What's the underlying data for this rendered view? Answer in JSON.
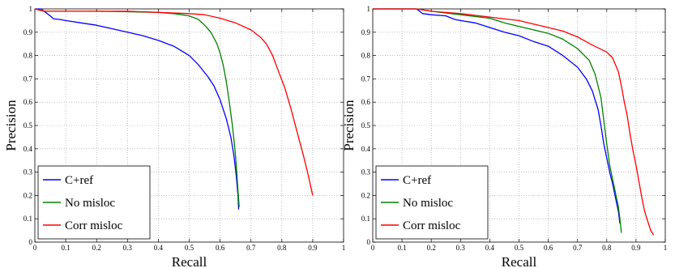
{
  "figure": {
    "background": "#ffffff"
  },
  "chart_data": [
    {
      "type": "line",
      "xlabel": "Recall",
      "ylabel": "Precision",
      "xlim": [
        0,
        1
      ],
      "ylim": [
        0,
        1
      ],
      "xticks": [
        "0",
        "0.1",
        "0.2",
        "0.3",
        "0.4",
        "0.5",
        "0.6",
        "0.7",
        "0.8",
        "0.9",
        "1"
      ],
      "yticks": [
        "0",
        "0.1",
        "0.2",
        "0.3",
        "0.4",
        "0.5",
        "0.6",
        "0.7",
        "0.8",
        "0.9",
        "1"
      ],
      "grid": true,
      "legend_position": "bottom-left",
      "series": [
        {
          "name": "C+ref",
          "color": "#0000ff",
          "points": [
            [
              0,
              1
            ],
            [
              0.02,
              1
            ],
            [
              0.035,
              0.985
            ],
            [
              0.05,
              0.97
            ],
            [
              0.06,
              0.958
            ],
            [
              0.08,
              0.955
            ],
            [
              0.1,
              0.95
            ],
            [
              0.15,
              0.94
            ],
            [
              0.2,
              0.93
            ],
            [
              0.25,
              0.915
            ],
            [
              0.3,
              0.9
            ],
            [
              0.35,
              0.885
            ],
            [
              0.4,
              0.865
            ],
            [
              0.45,
              0.84
            ],
            [
              0.5,
              0.8
            ],
            [
              0.53,
              0.76
            ],
            [
              0.56,
              0.71
            ],
            [
              0.58,
              0.67
            ],
            [
              0.6,
              0.61
            ],
            [
              0.62,
              0.53
            ],
            [
              0.635,
              0.45
            ],
            [
              0.645,
              0.37
            ],
            [
              0.652,
              0.29
            ],
            [
              0.658,
              0.2
            ],
            [
              0.66,
              0.14
            ]
          ]
        },
        {
          "name": "No misloc",
          "color": "#008000",
          "points": [
            [
              0,
              1
            ],
            [
              0.03,
              0.99
            ],
            [
              0.1,
              0.99
            ],
            [
              0.2,
              0.99
            ],
            [
              0.3,
              0.988
            ],
            [
              0.4,
              0.985
            ],
            [
              0.45,
              0.98
            ],
            [
              0.5,
              0.97
            ],
            [
              0.53,
              0.955
            ],
            [
              0.55,
              0.93
            ],
            [
              0.57,
              0.9
            ],
            [
              0.59,
              0.85
            ],
            [
              0.6,
              0.81
            ],
            [
              0.61,
              0.76
            ],
            [
              0.62,
              0.69
            ],
            [
              0.63,
              0.6
            ],
            [
              0.64,
              0.5
            ],
            [
              0.648,
              0.4
            ],
            [
              0.654,
              0.3
            ],
            [
              0.658,
              0.22
            ],
            [
              0.662,
              0.15
            ]
          ]
        },
        {
          "name": "Corr misloc",
          "color": "#ff0000",
          "points": [
            [
              0,
              1
            ],
            [
              0.03,
              0.99
            ],
            [
              0.1,
              0.99
            ],
            [
              0.2,
              0.99
            ],
            [
              0.3,
              0.99
            ],
            [
              0.4,
              0.985
            ],
            [
              0.5,
              0.98
            ],
            [
              0.55,
              0.975
            ],
            [
              0.6,
              0.96
            ],
            [
              0.65,
              0.94
            ],
            [
              0.7,
              0.91
            ],
            [
              0.73,
              0.88
            ],
            [
              0.75,
              0.85
            ],
            [
              0.77,
              0.8
            ],
            [
              0.79,
              0.73
            ],
            [
              0.81,
              0.66
            ],
            [
              0.83,
              0.57
            ],
            [
              0.85,
              0.47
            ],
            [
              0.87,
              0.37
            ],
            [
              0.885,
              0.29
            ],
            [
              0.895,
              0.23
            ],
            [
              0.9,
              0.2
            ]
          ]
        }
      ]
    },
    {
      "type": "line",
      "xlabel": "Recall",
      "ylabel": "Precision",
      "xlim": [
        0,
        1
      ],
      "ylim": [
        0,
        1
      ],
      "xticks": [
        "0",
        "0.1",
        "0.2",
        "0.3",
        "0.4",
        "0.5",
        "0.6",
        "0.7",
        "0.8",
        "0.9",
        "1"
      ],
      "yticks": [
        "0",
        "0.1",
        "0.2",
        "0.3",
        "0.4",
        "0.5",
        "0.6",
        "0.7",
        "0.8",
        "0.9",
        "1"
      ],
      "grid": true,
      "legend_position": "bottom-left",
      "series": [
        {
          "name": "C+ref",
          "color": "#0000ff",
          "points": [
            [
              0,
              1
            ],
            [
              0.15,
              1
            ],
            [
              0.17,
              0.98
            ],
            [
              0.2,
              0.975
            ],
            [
              0.25,
              0.97
            ],
            [
              0.28,
              0.955
            ],
            [
              0.3,
              0.95
            ],
            [
              0.35,
              0.94
            ],
            [
              0.4,
              0.92
            ],
            [
              0.45,
              0.9
            ],
            [
              0.5,
              0.885
            ],
            [
              0.55,
              0.86
            ],
            [
              0.6,
              0.84
            ],
            [
              0.65,
              0.8
            ],
            [
              0.7,
              0.75
            ],
            [
              0.73,
              0.7
            ],
            [
              0.75,
              0.65
            ],
            [
              0.77,
              0.57
            ],
            [
              0.78,
              0.5
            ],
            [
              0.79,
              0.42
            ],
            [
              0.8,
              0.36
            ],
            [
              0.81,
              0.3
            ],
            [
              0.82,
              0.25
            ],
            [
              0.83,
              0.19
            ],
            [
              0.84,
              0.13
            ],
            [
              0.845,
              0.08
            ]
          ]
        },
        {
          "name": "No misloc",
          "color": "#008000",
          "points": [
            [
              0,
              1
            ],
            [
              0.15,
              1
            ],
            [
              0.2,
              0.99
            ],
            [
              0.3,
              0.975
            ],
            [
              0.4,
              0.96
            ],
            [
              0.45,
              0.94
            ],
            [
              0.5,
              0.925
            ],
            [
              0.55,
              0.91
            ],
            [
              0.6,
              0.895
            ],
            [
              0.65,
              0.87
            ],
            [
              0.7,
              0.83
            ],
            [
              0.74,
              0.78
            ],
            [
              0.76,
              0.72
            ],
            [
              0.78,
              0.62
            ],
            [
              0.79,
              0.52
            ],
            [
              0.8,
              0.42
            ],
            [
              0.81,
              0.33
            ],
            [
              0.82,
              0.27
            ],
            [
              0.83,
              0.21
            ],
            [
              0.84,
              0.15
            ],
            [
              0.845,
              0.1
            ],
            [
              0.85,
              0.04
            ]
          ]
        },
        {
          "name": "Corr misloc",
          "color": "#ff0000",
          "points": [
            [
              0,
              1
            ],
            [
              0.15,
              1
            ],
            [
              0.2,
              0.99
            ],
            [
              0.3,
              0.98
            ],
            [
              0.4,
              0.965
            ],
            [
              0.5,
              0.95
            ],
            [
              0.55,
              0.935
            ],
            [
              0.6,
              0.92
            ],
            [
              0.65,
              0.905
            ],
            [
              0.7,
              0.88
            ],
            [
              0.75,
              0.845
            ],
            [
              0.8,
              0.815
            ],
            [
              0.82,
              0.79
            ],
            [
              0.84,
              0.73
            ],
            [
              0.85,
              0.67
            ],
            [
              0.86,
              0.6
            ],
            [
              0.87,
              0.54
            ],
            [
              0.88,
              0.46
            ],
            [
              0.89,
              0.39
            ],
            [
              0.9,
              0.33
            ],
            [
              0.91,
              0.26
            ],
            [
              0.92,
              0.19
            ],
            [
              0.93,
              0.13
            ],
            [
              0.94,
              0.09
            ],
            [
              0.95,
              0.05
            ],
            [
              0.96,
              0.03
            ]
          ]
        }
      ]
    }
  ]
}
